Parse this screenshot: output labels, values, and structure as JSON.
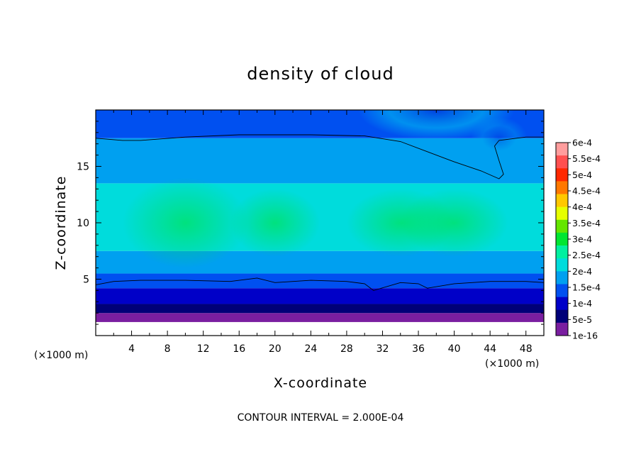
{
  "chart_data": {
    "type": "heatmap",
    "title": "density of cloud",
    "xlabel": "X-coordinate",
    "ylabel": "Z-coordinate",
    "x_unit_left": "(×1000 m)",
    "x_unit_right": "(×1000 m)",
    "xlim": [
      0,
      50
    ],
    "ylim": [
      0,
      20
    ],
    "x_ticks": [
      4,
      8,
      12,
      16,
      20,
      24,
      28,
      32,
      36,
      40,
      44,
      48
    ],
    "y_ticks": [
      5,
      10,
      15
    ],
    "footer": "CONTOUR INTERVAL = 2.000E-04",
    "colorbar": {
      "labels": [
        "6e-4",
        "5.5e-4",
        "5e-4",
        "4.5e-4",
        "4e-4",
        "3.5e-4",
        "3e-4",
        "2.5e-4",
        "2e-4",
        "1.5e-4",
        "1e-4",
        "5e-5",
        "1e-16"
      ],
      "colors": [
        "#ff9d9d",
        "#ff5050",
        "#ff2800",
        "#ff7800",
        "#ffc800",
        "#e6ff00",
        "#64e600",
        "#00e632",
        "#00f0a0",
        "#00dcdc",
        "#00a0f0",
        "#0050f0",
        "#0000c8",
        "#000078",
        "#7a1ea0"
      ]
    },
    "field_layers": [
      {
        "z_bottom": 1.2,
        "z_top": 2.0,
        "value": 1e-16
      },
      {
        "z_bottom": 2.0,
        "z_top": 2.8,
        "value": 5e-05
      },
      {
        "z_bottom": 2.8,
        "z_top": 4.2,
        "value": 0.0001
      },
      {
        "z_bottom": 4.2,
        "z_top": 5.5,
        "value": 0.00015
      },
      {
        "z_bottom": 5.5,
        "z_top": 7.5,
        "value": 0.0002
      },
      {
        "z_bottom": 7.5,
        "z_top": 13.5,
        "value": 0.00025
      },
      {
        "z_bottom": 13.5,
        "z_top": 17.5,
        "value": 0.0002
      },
      {
        "z_bottom": 17.5,
        "z_top": 20,
        "value": 0.00015
      }
    ],
    "contour_lines": [
      {
        "name": "upper",
        "x": [
          0,
          3,
          5,
          10,
          16,
          24,
          30,
          34,
          37,
          40,
          43,
          45,
          45.5,
          45,
          44.5,
          45,
          48,
          50
        ],
        "y": [
          17.5,
          17.3,
          17.3,
          17.6,
          17.8,
          17.8,
          17.7,
          17.2,
          16.3,
          15.4,
          14.6,
          13.9,
          14.3,
          15.5,
          16.8,
          17.3,
          17.6,
          17.6
        ]
      },
      {
        "name": "lower",
        "x": [
          0,
          2,
          5,
          10,
          15,
          18,
          20,
          24,
          28,
          30,
          31,
          34,
          36,
          37,
          40,
          44,
          48,
          50
        ],
        "y": [
          4.5,
          4.8,
          4.9,
          4.9,
          4.8,
          5.1,
          4.7,
          4.9,
          4.8,
          4.6,
          4.0,
          4.7,
          4.6,
          4.2,
          4.6,
          4.8,
          4.8,
          4.7
        ]
      }
    ]
  }
}
